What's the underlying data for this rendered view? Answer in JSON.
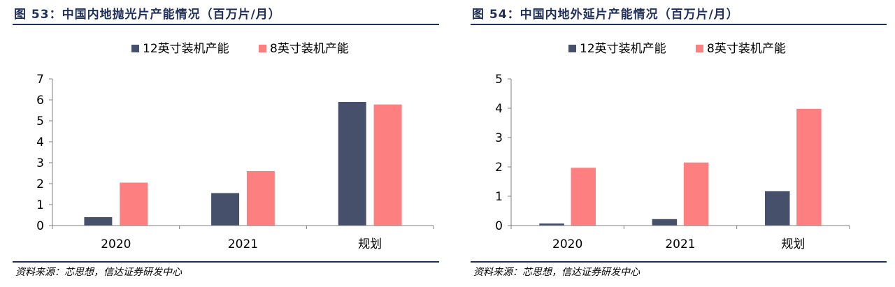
{
  "colors": {
    "navy": "#47506b",
    "salmon": "#fd7f7f",
    "title": "#1f2f5a"
  },
  "charts": [
    {
      "title": "图 53：中国内地抛光片产能情况（百万片/月）",
      "source": "资料来源：芯思想，信达证券研发中心"
    },
    {
      "title": "图 54：中国内地外延片产能情况（百万片/月）",
      "source": "资料来源：芯思想，信达证券研发中心"
    }
  ],
  "chart_data": [
    {
      "type": "bar",
      "title": "图 53：中国内地抛光片产能情况（百万片/月）",
      "categories": [
        "2020",
        "2021",
        "规划"
      ],
      "series": [
        {
          "name": "12英寸装机产能",
          "values": [
            0.4,
            1.55,
            5.9
          ]
        },
        {
          "name": "8英寸装机产能",
          "values": [
            2.05,
            2.6,
            5.78
          ]
        }
      ],
      "ylim": [
        0,
        7
      ],
      "yticks": [
        0,
        1,
        2,
        3,
        4,
        5,
        6,
        7
      ],
      "legend": "top",
      "grid": false
    },
    {
      "type": "bar",
      "title": "图 54：中国内地外延片产能情况（百万片/月）",
      "categories": [
        "2020",
        "2021",
        "规划"
      ],
      "series": [
        {
          "name": "12英寸装机产能",
          "values": [
            0.07,
            0.22,
            1.17
          ]
        },
        {
          "name": "8英寸装机产能",
          "values": [
            1.97,
            2.15,
            3.98
          ]
        }
      ],
      "ylim": [
        0,
        5
      ],
      "yticks": [
        0,
        1,
        2,
        3,
        4,
        5
      ],
      "legend": "top",
      "grid": false
    }
  ]
}
